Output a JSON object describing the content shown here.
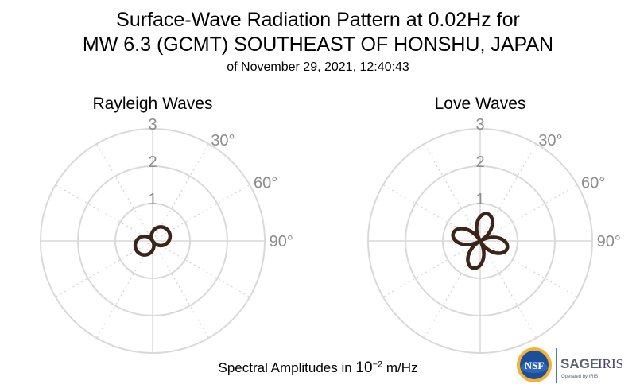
{
  "title": {
    "line1": "Surface-Wave Radiation Pattern at 0.02Hz for",
    "line2": "MW 6.3 (GCMT) SOUTHEAST OF HONSHU, JAPAN",
    "line3": "of November 29, 2021, 12:40:43"
  },
  "footer": {
    "prefix": "Spectral Amplitudes in ",
    "base": "10",
    "exponent": "−2",
    "suffix": " m/Hz"
  },
  "logos": {
    "nsf": "NSF",
    "sage": "SAGE",
    "iris": "IRIS",
    "operated": "Operated by IRIS"
  },
  "colors": {
    "pattern": "#3b2418",
    "grid": "#d9d9d9",
    "labels": "#8c8c8c"
  },
  "chart_data": [
    {
      "type": "polar",
      "title": "Rayleigh Waves",
      "radial_ticks": [
        1,
        2,
        3
      ],
      "rlim": [
        0,
        3
      ],
      "angle_labels": [
        "30°",
        "60°",
        "90°"
      ],
      "pattern": "two-lobed",
      "max_amplitude": 0.5,
      "lobe_azimuths_deg": [
        60,
        240
      ]
    },
    {
      "type": "polar",
      "title": "Love Waves",
      "radial_ticks": [
        1,
        2,
        3
      ],
      "rlim": [
        0,
        3
      ],
      "angle_labels": [
        "30°",
        "60°",
        "90°"
      ],
      "pattern": "four-lobed",
      "max_amplitude": 0.75,
      "lobe_azimuths_deg": [
        15,
        105,
        195,
        285
      ]
    }
  ]
}
